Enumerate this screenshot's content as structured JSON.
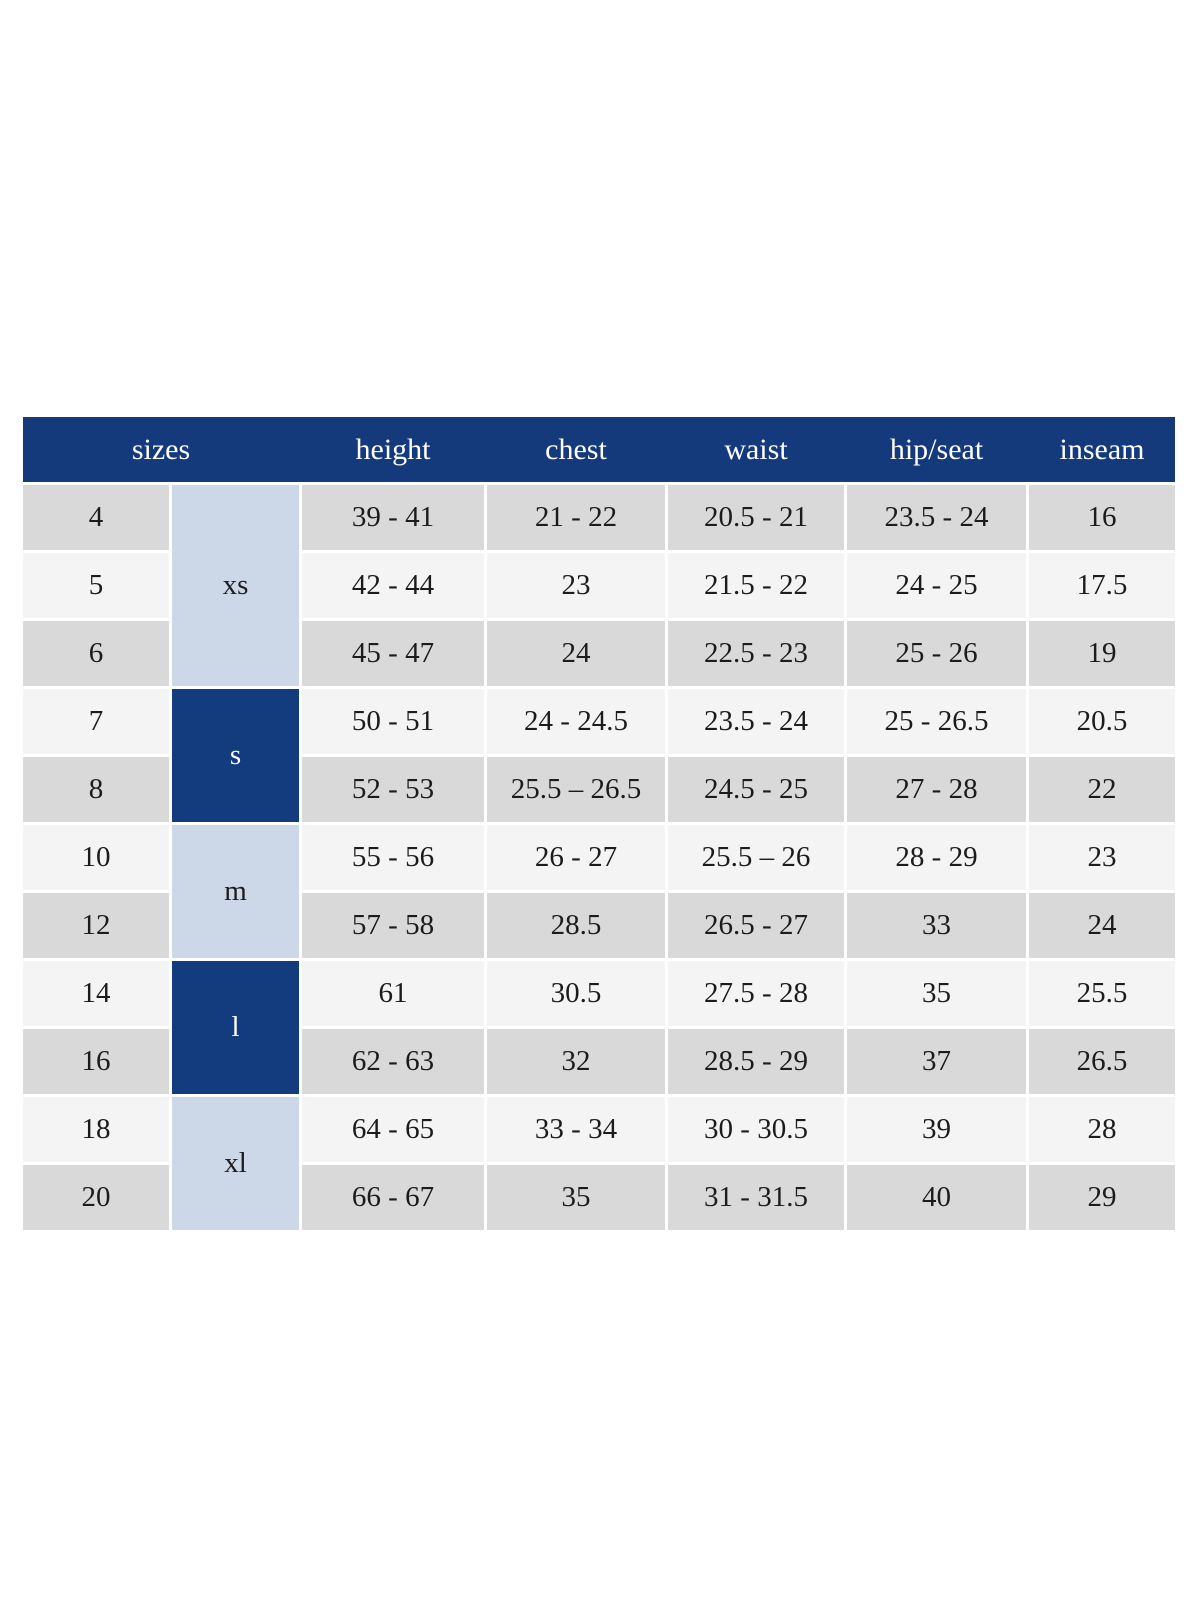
{
  "chart_data": {
    "type": "table",
    "columns": [
      "sizes",
      "height",
      "chest",
      "waist",
      "hip/seat",
      "inseam"
    ],
    "size_groups": [
      {
        "label": "xs",
        "sizes": [
          "4",
          "5",
          "6"
        ],
        "variant": "light-blue"
      },
      {
        "label": "s",
        "sizes": [
          "7",
          "8"
        ],
        "variant": "navy"
      },
      {
        "label": "m",
        "sizes": [
          "10",
          "12"
        ],
        "variant": "light-blue"
      },
      {
        "label": "l",
        "sizes": [
          "14",
          "16"
        ],
        "variant": "navy"
      },
      {
        "label": "xl",
        "sizes": [
          "18",
          "20"
        ],
        "variant": "light-blue"
      }
    ],
    "rows": [
      {
        "size": "4",
        "height": "39 - 41",
        "chest": "21 - 22",
        "waist": "20.5 - 21",
        "hip_seat": "23.5 - 24",
        "inseam": "16"
      },
      {
        "size": "5",
        "height": "42 - 44",
        "chest": "23",
        "waist": "21.5 - 22",
        "hip_seat": "24 - 25",
        "inseam": "17.5"
      },
      {
        "size": "6",
        "height": "45 - 47",
        "chest": "24",
        "waist": "22.5 - 23",
        "hip_seat": "25 - 26",
        "inseam": "19"
      },
      {
        "size": "7",
        "height": "50 - 51",
        "chest": "24 - 24.5",
        "waist": "23.5 - 24",
        "hip_seat": "25 - 26.5",
        "inseam": "20.5"
      },
      {
        "size": "8",
        "height": "52 - 53",
        "chest": "25.5 – 26.5",
        "waist": "24.5 - 25",
        "hip_seat": "27 - 28",
        "inseam": "22"
      },
      {
        "size": "10",
        "height": "55 - 56",
        "chest": "26 - 27",
        "waist": "25.5 – 26",
        "hip_seat": "28 - 29",
        "inseam": "23"
      },
      {
        "size": "12",
        "height": "57 - 58",
        "chest": "28.5",
        "waist": "26.5 - 27",
        "hip_seat": "33",
        "inseam": "24"
      },
      {
        "size": "14",
        "height": "61",
        "chest": "30.5",
        "waist": "27.5 - 28",
        "hip_seat": "35",
        "inseam": "25.5"
      },
      {
        "size": "16",
        "height": "62 - 63",
        "chest": "32",
        "waist": "28.5 - 29",
        "hip_seat": "37",
        "inseam": "26.5"
      },
      {
        "size": "18",
        "height": "64 - 65",
        "chest": "33 - 34",
        "waist": "30 - 30.5",
        "hip_seat": "39",
        "inseam": "28"
      },
      {
        "size": "20",
        "height": "66 - 67",
        "chest": "35",
        "waist": "31 - 31.5",
        "hip_seat": "40",
        "inseam": "29"
      }
    ],
    "colors": {
      "header_background": "#143a7c",
      "header_text": "#ffffff",
      "group_navy": "#123c7d",
      "group_light_blue": "#ccd8e8",
      "row_gray": "#d9d9d9",
      "row_light": "#f4f4f4",
      "cell_text": "#1c1c1c",
      "page_background": "#ffffff"
    }
  }
}
